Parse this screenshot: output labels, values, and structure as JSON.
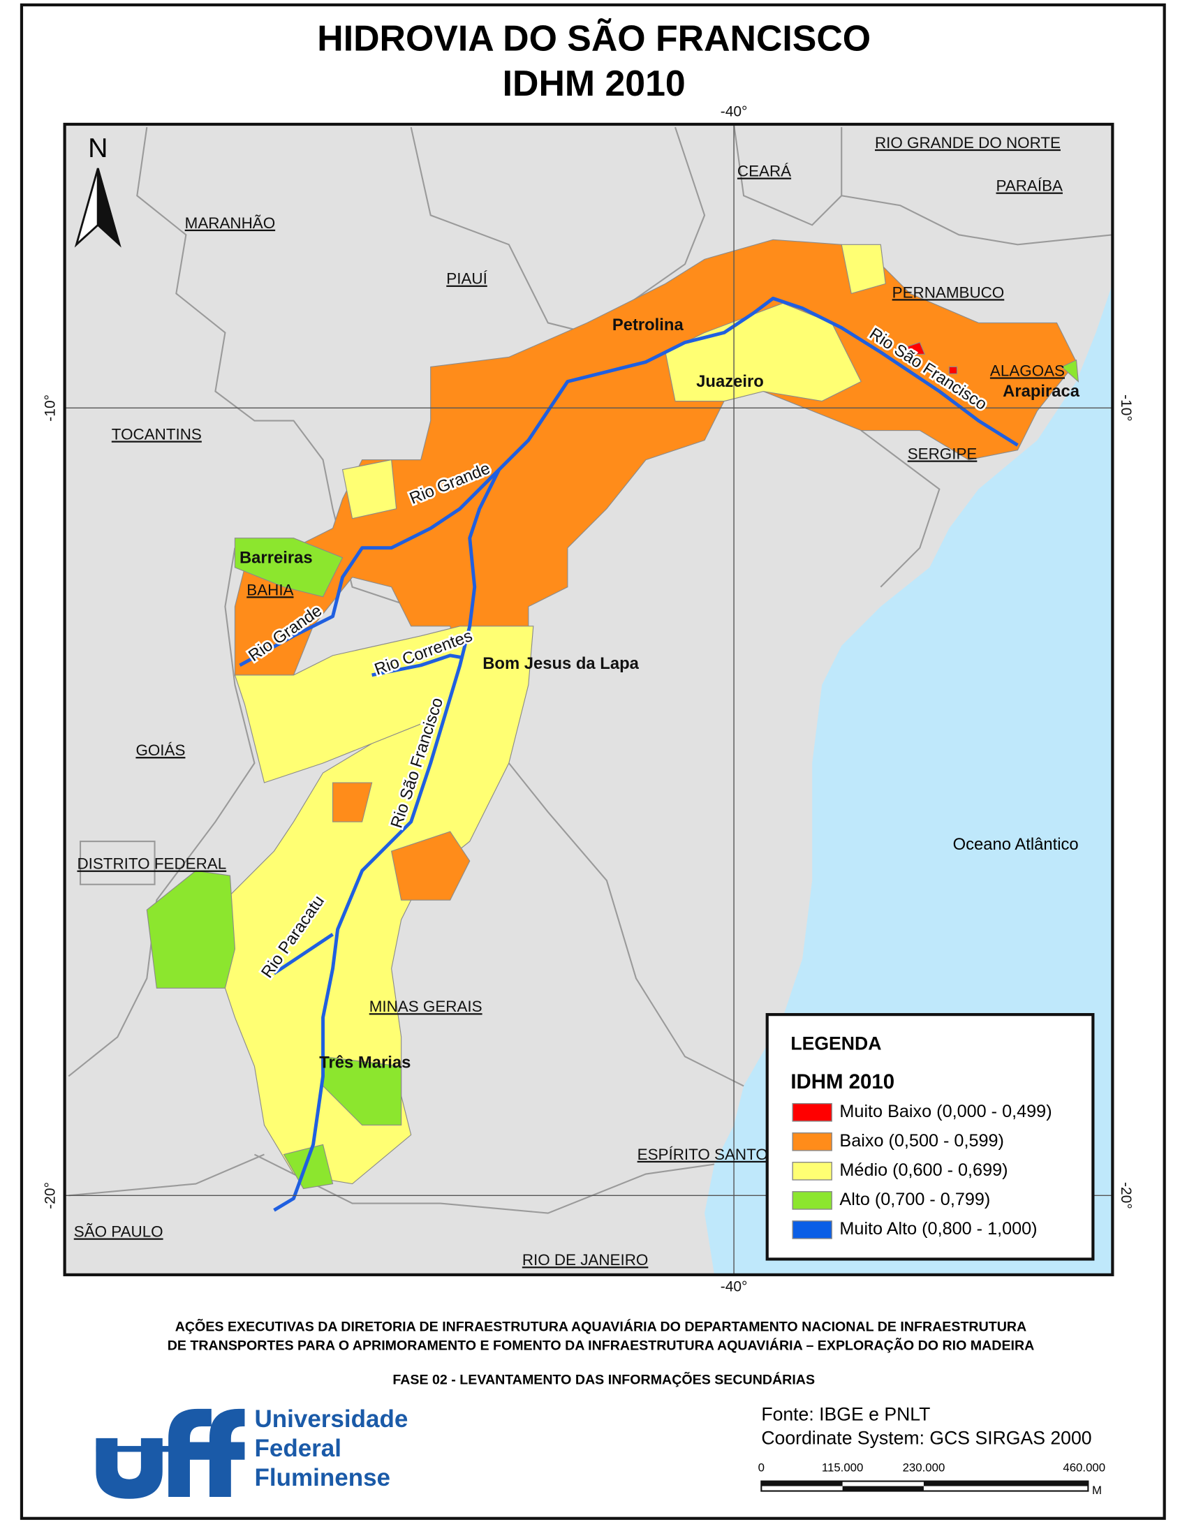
{
  "title": [
    "HIDROVIA DO SÃO FRANCISCO",
    "IDHM 2010"
  ],
  "graticule": {
    "lon": "-40°",
    "lat": [
      "-10°",
      "-20°"
    ]
  },
  "north": "N",
  "states": [
    "MARANHÃO",
    "PIAUÍ",
    "CEARÁ",
    "RIO GRANDE DO NORTE",
    "PARAÍBA",
    "PERNAMBUCO",
    "ALAGOAS",
    "SERGIPE",
    "TOCANTINS",
    "BAHIA",
    "GOIÁS",
    "DISTRITO FEDERAL",
    "MINAS GERAIS",
    "ESPÍRITO SANTO",
    "SÃO PAULO",
    "RIO DE JANEIRO"
  ],
  "cities": [
    "Petrolina",
    "Juazeiro",
    "Arapiraca",
    "Barreiras",
    "Bom Jesus da Lapa",
    "Três Marias"
  ],
  "rivers": [
    "Rio São Francisco",
    "Rio Grande",
    "Rio Grande",
    "Rio Correntes",
    "Rio São Francisco",
    "Rio Paracatu"
  ],
  "ocean": "Oceano Atlântico",
  "legend": {
    "title": "LEGENDA",
    "subtitle": "IDHM 2010",
    "items": [
      {
        "label": "Muito Baixo (0,000 - 0,499)",
        "color": "#ff0000"
      },
      {
        "label": "Baixo (0,500 - 0,599)",
        "color": "#ff8c1a"
      },
      {
        "label": "Médio (0,600 - 0,699)",
        "color": "#ffff73"
      },
      {
        "label": "Alto (0,700 - 0,799)",
        "color": "#8ce62e"
      },
      {
        "label": "Muito Alto (0,800 - 1,000)",
        "color": "#0a5ee6"
      }
    ]
  },
  "footer": {
    "lines": [
      "AÇÕES EXECUTIVAS DA DIRETORIA DE INFRAESTRUTURA AQUAVIÁRIA DO DEPARTAMENTO NACIONAL DE INFRAESTRUTURA",
      "DE TRANSPORTES PARA O APRIMORAMENTO E FOMENTO DA INFRAESTRUTURA AQUAVIÁRIA – EXPLORAÇÃO DO RIO MADEIRA"
    ],
    "phase": "FASE 02 - LEVANTAMENTO DAS INFORMAÇÕES SECUNDÁRIAS"
  },
  "logo": [
    "Universidade",
    "Federal",
    "Fluminense"
  ],
  "source": [
    "Fonte: IBGE e PNLT",
    "Coordinate System: GCS SIRGAS 2000"
  ],
  "scale": {
    "labels": [
      "0",
      "115.000",
      "230.000",
      "460.000"
    ],
    "unit": "M"
  }
}
